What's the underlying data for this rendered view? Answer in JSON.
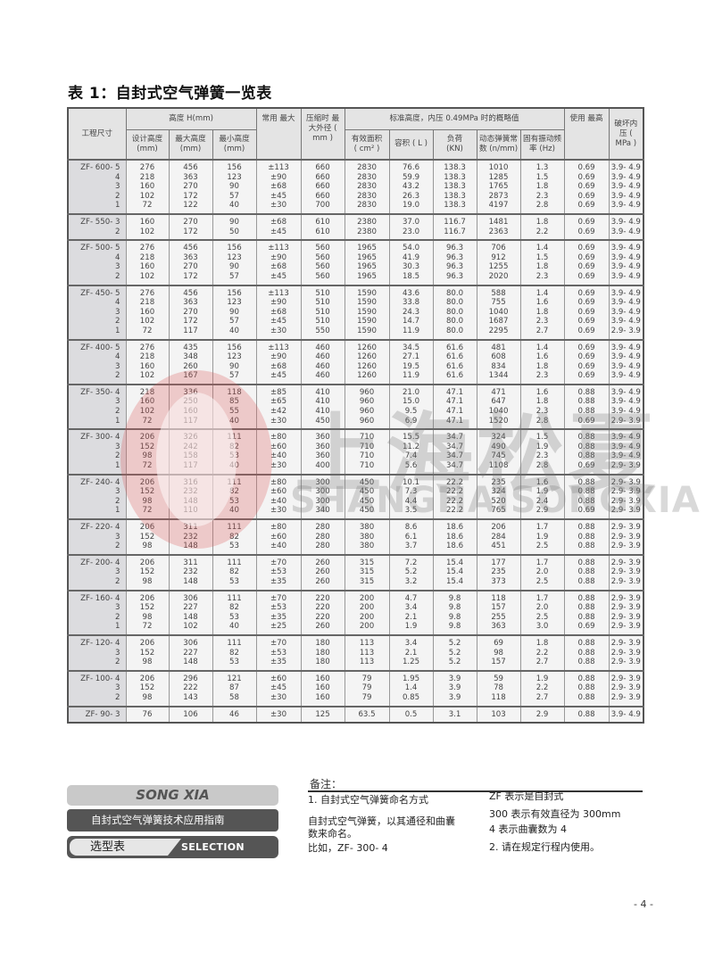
{
  "title": "表 1：自封式空气弹簧一览表",
  "table": {
    "header": {
      "model": "工程尺寸",
      "height_group": "高度 H(mm)",
      "design_height": "设计高度 (mm)",
      "max_height": "最大高度 (mm)",
      "min_height": "最小高度 (mm)",
      "stroke": "常用 最大",
      "max_od": "压缩时 最大外径 ( mm )",
      "std_group": "标准高度，内压 0.49MPa 时的概略值",
      "area": "有效面积 ( cm² )",
      "volume": "容积 ( L )",
      "load": "负荷 (KN)",
      "spring_rate": "动态弹簧常数 (n/mm)",
      "freq": "固有振动频率 (Hz)",
      "max_use": "使用 最高",
      "burst": "破坏内压 ( MPa )"
    },
    "groups": [
      {
        "rows": [
          [
            "ZF- 600- 5",
            "276",
            "456",
            "156",
            "±113",
            "660",
            "2830",
            "76.6",
            "138.3",
            "1010",
            "1.3",
            "0.69",
            "3.9- 4.9"
          ],
          [
            "4",
            "218",
            "363",
            "123",
            "±90",
            "660",
            "2830",
            "59.9",
            "138.3",
            "1285",
            "1.5",
            "0.69",
            "3.9- 4.9"
          ],
          [
            "3",
            "160",
            "270",
            "90",
            "±68",
            "660",
            "2830",
            "43.2",
            "138.3",
            "1765",
            "1.8",
            "0.69",
            "3.9- 4.9"
          ],
          [
            "2",
            "102",
            "172",
            "57",
            "±45",
            "660",
            "2830",
            "26.3",
            "138.3",
            "2873",
            "2.3",
            "0.69",
            "3.9- 4.9"
          ],
          [
            "1",
            "72",
            "122",
            "40",
            "±30",
            "700",
            "2830",
            "19.0",
            "138.3",
            "4197",
            "2.8",
            "0.69",
            "3.9- 4.9"
          ]
        ]
      },
      {
        "rows": [
          [
            "ZF- 550- 3",
            "160",
            "270",
            "90",
            "±68",
            "610",
            "2380",
            "37.0",
            "116.7",
            "1481",
            "1.8",
            "0.69",
            "3.9- 4.9"
          ],
          [
            "2",
            "102",
            "172",
            "50",
            "±45",
            "610",
            "2380",
            "23.0",
            "116.7",
            "2363",
            "2.2",
            "0.69",
            "3.9- 4.9"
          ]
        ]
      },
      {
        "rows": [
          [
            "ZF- 500- 5",
            "276",
            "456",
            "156",
            "±113",
            "560",
            "1965",
            "54.0",
            "96.3",
            "706",
            "1.4",
            "0.69",
            "3.9- 4.9"
          ],
          [
            "4",
            "218",
            "363",
            "123",
            "±90",
            "560",
            "1965",
            "41.9",
            "96.3",
            "912",
            "1.5",
            "0.69",
            "3.9- 4.9"
          ],
          [
            "3",
            "160",
            "270",
            "90",
            "±68",
            "560",
            "1965",
            "30.3",
            "96.3",
            "1255",
            "1.8",
            "0.69",
            "3.9- 4.9"
          ],
          [
            "2",
            "102",
            "172",
            "57",
            "±45",
            "560",
            "1965",
            "18.5",
            "96.3",
            "2020",
            "2.3",
            "0.69",
            "3.9- 4.9"
          ]
        ]
      },
      {
        "rows": [
          [
            "ZF- 450- 5",
            "276",
            "456",
            "156",
            "±113",
            "510",
            "1590",
            "43.6",
            "80.0",
            "588",
            "1.4",
            "0.69",
            "3.9- 4.9"
          ],
          [
            "4",
            "218",
            "363",
            "123",
            "±90",
            "510",
            "1590",
            "33.8",
            "80.0",
            "755",
            "1.6",
            "0.69",
            "3.9- 4.9"
          ],
          [
            "3",
            "160",
            "270",
            "90",
            "±68",
            "510",
            "1590",
            "24.3",
            "80.0",
            "1040",
            "1.8",
            "0.69",
            "3.9- 4.9"
          ],
          [
            "2",
            "102",
            "172",
            "57",
            "±45",
            "510",
            "1590",
            "14.7",
            "80.0",
            "1687",
            "2.3",
            "0.69",
            "3.9- 4.9"
          ],
          [
            "1",
            "72",
            "117",
            "40",
            "±30",
            "550",
            "1590",
            "11.9",
            "80.0",
            "2295",
            "2.7",
            "0.69",
            "2.9- 3.9"
          ]
        ]
      },
      {
        "rows": [
          [
            "ZF- 400- 5",
            "276",
            "435",
            "156",
            "±113",
            "460",
            "1260",
            "34.5",
            "61.6",
            "481",
            "1.4",
            "0.69",
            "3.9- 4.9"
          ],
          [
            "4",
            "218",
            "348",
            "123",
            "±90",
            "460",
            "1260",
            "27.1",
            "61.6",
            "608",
            "1.6",
            "0.69",
            "3.9- 4.9"
          ],
          [
            "3",
            "160",
            "260",
            "90",
            "±68",
            "460",
            "1260",
            "19.5",
            "61.6",
            "834",
            "1.8",
            "0.69",
            "3.9- 4.9"
          ],
          [
            "2",
            "102",
            "167",
            "57",
            "±45",
            "460",
            "1260",
            "11.9",
            "61.6",
            "1344",
            "2.3",
            "0.69",
            "3.9- 4.9"
          ]
        ]
      },
      {
        "rows": [
          [
            "ZF- 350- 4",
            "218",
            "336",
            "118",
            "±85",
            "410",
            "960",
            "21.0",
            "47.1",
            "471",
            "1.6",
            "0.88",
            "3.9- 4.9"
          ],
          [
            "3",
            "160",
            "250",
            "85",
            "±65",
            "410",
            "960",
            "15.0",
            "47.1",
            "647",
            "1.8",
            "0.88",
            "3.9- 4.9"
          ],
          [
            "2",
            "102",
            "160",
            "55",
            "±42",
            "410",
            "960",
            "9.5",
            "47.1",
            "1040",
            "2.3",
            "0.88",
            "3.9- 4.9"
          ],
          [
            "1",
            "72",
            "117",
            "40",
            "±30",
            "450",
            "960",
            "6.9",
            "47.1",
            "1520",
            "2.8",
            "0.69",
            "2.9- 3.9"
          ]
        ]
      },
      {
        "rows": [
          [
            "ZF- 300- 4",
            "206",
            "326",
            "111",
            "±80",
            "360",
            "710",
            "15.5",
            "34.7",
            "324",
            "1.5",
            "0.88",
            "3.9- 4.9"
          ],
          [
            "3",
            "152",
            "242",
            "82",
            "±60",
            "360",
            "710",
            "11.2",
            "34.7",
            "490",
            "1.9",
            "0.88",
            "3.9- 4.9"
          ],
          [
            "2",
            "98",
            "158",
            "53",
            "±40",
            "360",
            "710",
            "7.4",
            "34.7",
            "745",
            "2.3",
            "0.88",
            "3.9- 4.9"
          ],
          [
            "1",
            "72",
            "117",
            "40",
            "±30",
            "400",
            "710",
            "5.6",
            "34.7",
            "1108",
            "2.8",
            "0.69",
            "2.9- 3.9"
          ]
        ]
      },
      {
        "rows": [
          [
            "ZF- 240- 4",
            "206",
            "316",
            "111",
            "±80",
            "300",
            "450",
            "10.1",
            "22.2",
            "235",
            "1.6",
            "0.88",
            "2.9- 3.9"
          ],
          [
            "3",
            "152",
            "232",
            "82",
            "±60",
            "300",
            "450",
            "7.3",
            "22.2",
            "324",
            "1.9",
            "0.88",
            "2.9- 3.9"
          ],
          [
            "2",
            "98",
            "148",
            "53",
            "±40",
            "300",
            "450",
            "4.4",
            "22.2",
            "520",
            "2.4",
            "0.88",
            "2.9- 3.9"
          ],
          [
            "1",
            "72",
            "110",
            "40",
            "±30",
            "340",
            "450",
            "3.5",
            "22.2",
            "765",
            "2.9",
            "0.69",
            "2.9- 3.9"
          ]
        ]
      },
      {
        "rows": [
          [
            "ZF- 220- 4",
            "206",
            "311",
            "111",
            "±80",
            "280",
            "380",
            "8.6",
            "18.6",
            "206",
            "1.7",
            "0.88",
            "2.9- 3.9"
          ],
          [
            "3",
            "152",
            "232",
            "82",
            "±60",
            "280",
            "380",
            "6.1",
            "18.6",
            "284",
            "1.9",
            "0.88",
            "2.9- 3.9"
          ],
          [
            "2",
            "98",
            "148",
            "53",
            "±40",
            "280",
            "380",
            "3.7",
            "18.6",
            "451",
            "2.5",
            "0.88",
            "2.9- 3.9"
          ]
        ]
      },
      {
        "rows": [
          [
            "ZF- 200- 4",
            "206",
            "311",
            "111",
            "±70",
            "260",
            "315",
            "7.2",
            "15.4",
            "177",
            "1.7",
            "0.88",
            "2.9- 3.9"
          ],
          [
            "3",
            "152",
            "232",
            "82",
            "±53",
            "260",
            "315",
            "5.2",
            "15.4",
            "235",
            "2.0",
            "0.88",
            "2.9- 3.9"
          ],
          [
            "2",
            "98",
            "148",
            "53",
            "±35",
            "260",
            "315",
            "3.2",
            "15.4",
            "373",
            "2.5",
            "0.88",
            "2.9- 3.9"
          ]
        ]
      },
      {
        "rows": [
          [
            "ZF- 160- 4",
            "206",
            "306",
            "111",
            "±70",
            "220",
            "200",
            "4.7",
            "9.8",
            "118",
            "1.7",
            "0.88",
            "2.9- 3.9"
          ],
          [
            "3",
            "152",
            "227",
            "82",
            "±53",
            "220",
            "200",
            "3.4",
            "9.8",
            "157",
            "2.0",
            "0.88",
            "2.9- 3.9"
          ],
          [
            "2",
            "98",
            "148",
            "53",
            "±35",
            "220",
            "200",
            "2.1",
            "9.8",
            "255",
            "2.5",
            "0.88",
            "2.9- 3.9"
          ],
          [
            "1",
            "72",
            "102",
            "40",
            "±25",
            "260",
            "200",
            "1.9",
            "9.8",
            "363",
            "3.0",
            "0.69",
            "2.9- 3.9"
          ]
        ]
      },
      {
        "rows": [
          [
            "ZF- 120- 4",
            "206",
            "306",
            "111",
            "±70",
            "180",
            "113",
            "3.4",
            "5.2",
            "69",
            "1.8",
            "0.88",
            "2.9- 3.9"
          ],
          [
            "3",
            "152",
            "227",
            "82",
            "±53",
            "180",
            "113",
            "2.1",
            "5.2",
            "98",
            "2.2",
            "0.88",
            "2.9- 3.9"
          ],
          [
            "2",
            "98",
            "148",
            "53",
            "±35",
            "180",
            "113",
            "1.25",
            "5.2",
            "157",
            "2.7",
            "0.88",
            "2.9- 3.9"
          ]
        ]
      },
      {
        "rows": [
          [
            "ZF- 100- 4",
            "206",
            "296",
            "121",
            "±60",
            "160",
            "79",
            "1.95",
            "3.9",
            "59",
            "1.9",
            "0.88",
            "2.9- 3.9"
          ],
          [
            "3",
            "152",
            "222",
            "87",
            "±45",
            "160",
            "79",
            "1.4",
            "3.9",
            "78",
            "2.2",
            "0.88",
            "2.9- 3.9"
          ],
          [
            "2",
            "98",
            "143",
            "58",
            "±30",
            "160",
            "79",
            "0.85",
            "3.9",
            "118",
            "2.7",
            "0.88",
            "2.9- 3.9"
          ]
        ]
      },
      {
        "rows": [
          [
            "ZF- 90- 3",
            "76",
            "106",
            "46",
            "±30",
            "125",
            "63.5",
            "0.5",
            "3.1",
            "103",
            "2.9",
            "0.88",
            "3.9- 4.9"
          ]
        ]
      }
    ]
  },
  "watermark": {
    "logo_text": "上海松夏",
    "logo_subtext": "SHANGHAISONGXIA",
    "logo_color": "#dc5a5a"
  },
  "brand": {
    "name": "SONG XIA",
    "guide": "自封式空气弹簧技术应用指南",
    "section_cn": "选型表",
    "section_en": "SELECTION TABLE"
  },
  "notes": {
    "heading": "备注：",
    "item1_title": "1. 自封式空气弹簧命名方式",
    "item1_body": "自封式空气弹簧，以其通径和曲囊数来命名。",
    "item1_example": "比如，ZF- 300- 4",
    "zf_meaning": "ZF 表示是自封式",
    "d_meaning": "300 表示有效直径为 300mm",
    "n_meaning": "4 表示曲囊数为 4",
    "item2": "2. 请在规定行程内使用。"
  },
  "page_number": "- 4 -"
}
